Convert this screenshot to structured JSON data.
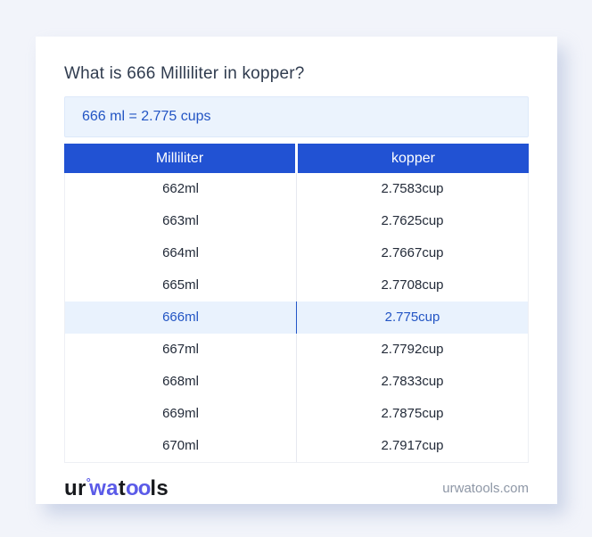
{
  "page": {
    "title": "What is 666 Milliliter in kopper?",
    "result": "666 ml = 2.775 cups"
  },
  "table": {
    "headers": [
      "Milliliter",
      "kopper"
    ],
    "rows": [
      {
        "ml": "662ml",
        "cup": "2.7583cup",
        "highlight": false
      },
      {
        "ml": "663ml",
        "cup": "2.7625cup",
        "highlight": false
      },
      {
        "ml": "664ml",
        "cup": "2.7667cup",
        "highlight": false
      },
      {
        "ml": "665ml",
        "cup": "2.7708cup",
        "highlight": false
      },
      {
        "ml": "666ml",
        "cup": "2.775cup",
        "highlight": true
      },
      {
        "ml": "667ml",
        "cup": "2.7792cup",
        "highlight": false
      },
      {
        "ml": "668ml",
        "cup": "2.7833cup",
        "highlight": false
      },
      {
        "ml": "669ml",
        "cup": "2.7875cup",
        "highlight": false
      },
      {
        "ml": "670ml",
        "cup": "2.7917cup",
        "highlight": false
      }
    ]
  },
  "footer": {
    "logo": {
      "ur": "ur",
      "deg": "°",
      "wa": "wa",
      "t": "t",
      "oo": "oo",
      "ls": "ls"
    },
    "site": "urwatools.com"
  },
  "colors": {
    "page_background": "#f2f4fa",
    "card_background": "#ffffff",
    "header_blue": "#2152d3",
    "result_box_background": "#ebf3fd",
    "highlight_row_background": "#e9f2fd",
    "link_blue": "#2355c4",
    "logo_blue": "#5b5be8",
    "cell_text": "#232b39",
    "muted_text": "#8e97a6"
  }
}
